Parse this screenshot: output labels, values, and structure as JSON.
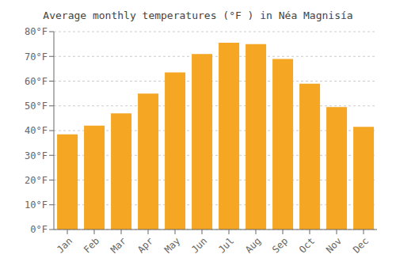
{
  "chart_data": {
    "type": "bar",
    "title": "Average monthly temperatures (°F ) in Néa Magnisía",
    "categories": [
      "Jan",
      "Feb",
      "Mar",
      "Apr",
      "May",
      "Jun",
      "Jul",
      "Aug",
      "Sep",
      "Oct",
      "Nov",
      "Dec"
    ],
    "values": [
      38.5,
      42.0,
      47.0,
      55.0,
      63.5,
      71.0,
      75.5,
      75.0,
      69.0,
      59.0,
      49.5,
      41.5
    ],
    "color": "#F5A623",
    "ylim": [
      0,
      80
    ],
    "yticks": [
      {
        "value": 0,
        "label": "0°F"
      },
      {
        "value": 10,
        "label": "10°F"
      },
      {
        "value": 20,
        "label": "20°F"
      },
      {
        "value": 30,
        "label": "30°F"
      },
      {
        "value": 40,
        "label": "40°F"
      },
      {
        "value": 50,
        "label": "50°F"
      },
      {
        "value": 60,
        "label": "60°F"
      },
      {
        "value": 70,
        "label": "70°F"
      },
      {
        "value": 80,
        "label": "80°F"
      }
    ],
    "grid": true
  }
}
